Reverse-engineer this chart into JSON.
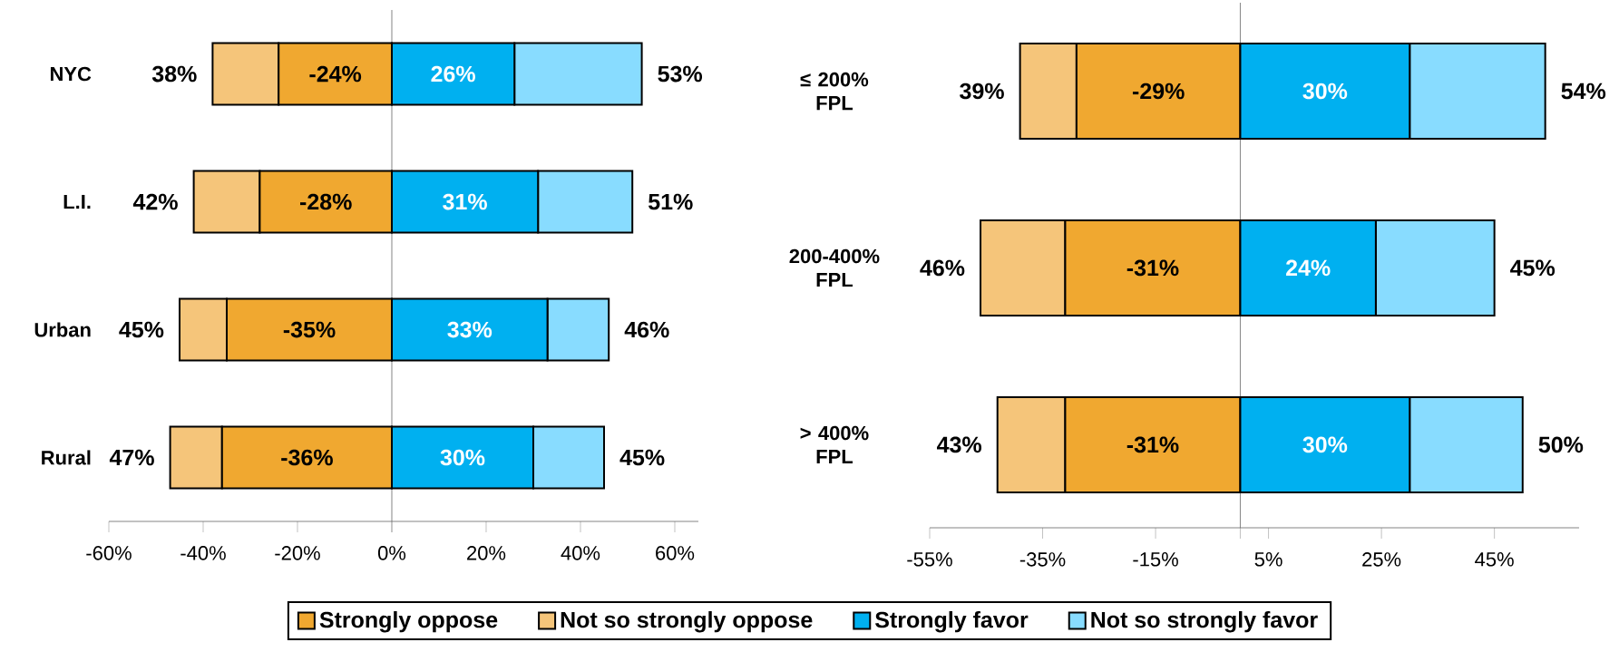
{
  "chart_data": [
    {
      "type": "bar",
      "orientation": "horizontal",
      "stacked": true,
      "categories": [
        "NYC",
        "L.I.",
        "Urban",
        "Rural"
      ],
      "series": [
        {
          "name": "Strongly oppose",
          "color": "#f0a830",
          "values": [
            -24,
            -28,
            -35,
            -36
          ],
          "value_labels": [
            "-24%",
            "-28%",
            "-35%",
            "-36%"
          ]
        },
        {
          "name": "Not so strongly oppose",
          "color": "#f5c57a",
          "values": [
            -14,
            -14,
            -10,
            -11
          ]
        },
        {
          "name": "Strongly favor",
          "color": "#00b0f0",
          "values": [
            26,
            31,
            33,
            30
          ],
          "value_labels": [
            "26%",
            "31%",
            "33%",
            "30%"
          ]
        },
        {
          "name": "Not so strongly favor",
          "color": "#88dcff",
          "values": [
            27,
            20,
            13,
            15
          ]
        }
      ],
      "annotations": [
        {
          "text": "38%",
          "x": -38,
          "y": "NYC"
        },
        {
          "text": "42%",
          "x": -42,
          "y": "L.I."
        },
        {
          "text": "45%",
          "x": -45,
          "y": "Urban"
        },
        {
          "text": "47%",
          "x": -47,
          "y": "Rural"
        },
        {
          "text": "53%",
          "x": 53,
          "y": "NYC"
        },
        {
          "text": "51%",
          "x": 51,
          "y": "L.I."
        },
        {
          "text": "46%",
          "x": 46,
          "y": "Urban"
        },
        {
          "text": "45%",
          "x": 45,
          "y": "Rural"
        }
      ],
      "xlim": [
        -60,
        65
      ],
      "xticks": [
        {
          "value": -60,
          "label": "-60%"
        },
        {
          "value": -40,
          "label": "-40%"
        },
        {
          "value": -20,
          "label": "-20%"
        },
        {
          "value": 0,
          "label": "0%"
        },
        {
          "value": 20,
          "label": "20%"
        },
        {
          "value": 40,
          "label": "40%"
        },
        {
          "value": 60,
          "label": "60%"
        }
      ],
      "legend": "bottom"
    },
    {
      "type": "bar",
      "orientation": "horizontal",
      "stacked": true,
      "categories": [
        "≤ 200% FPL",
        "200-400% FPL",
        "> 400% FPL"
      ],
      "series": [
        {
          "color": "#f0a830",
          "values": [
            -29,
            -31,
            -31
          ],
          "value_labels": [
            "-29%",
            "-31%",
            "-31%"
          ]
        },
        {
          "color": "#f5c57a",
          "values": [
            -10,
            -15,
            -12
          ]
        },
        {
          "color": "#00b0f0",
          "values": [
            30,
            24,
            30
          ],
          "value_labels": [
            "30%",
            "24%",
            "30%"
          ]
        },
        {
          "color": "#88dcff",
          "values": [
            24,
            21,
            20
          ]
        }
      ],
      "annotations": [
        {
          "text": "39%",
          "x": -39,
          "y": "≤ 200% FPL"
        },
        {
          "text": "46%",
          "x": -46,
          "y": "200-400% FPL"
        },
        {
          "text": "43%",
          "x": -43,
          "y": "> 400% FPL"
        },
        {
          "text": "54%",
          "x": 54,
          "y": "≤ 200% FPL"
        },
        {
          "text": "45%",
          "x": 45,
          "y": "200-400% FPL"
        },
        {
          "text": "50%",
          "x": 50,
          "y": "> 400% FPL"
        }
      ],
      "xlim": [
        -55,
        60
      ],
      "xticks": [
        {
          "value": -55,
          "label": "-55%"
        },
        {
          "value": -35,
          "label": "-35%"
        },
        {
          "value": -15,
          "label": "-15%"
        },
        {
          "value": 5,
          "label": "5%"
        },
        {
          "value": 25,
          "label": "25%"
        },
        {
          "value": 45,
          "label": "45%"
        }
      ]
    }
  ]
}
